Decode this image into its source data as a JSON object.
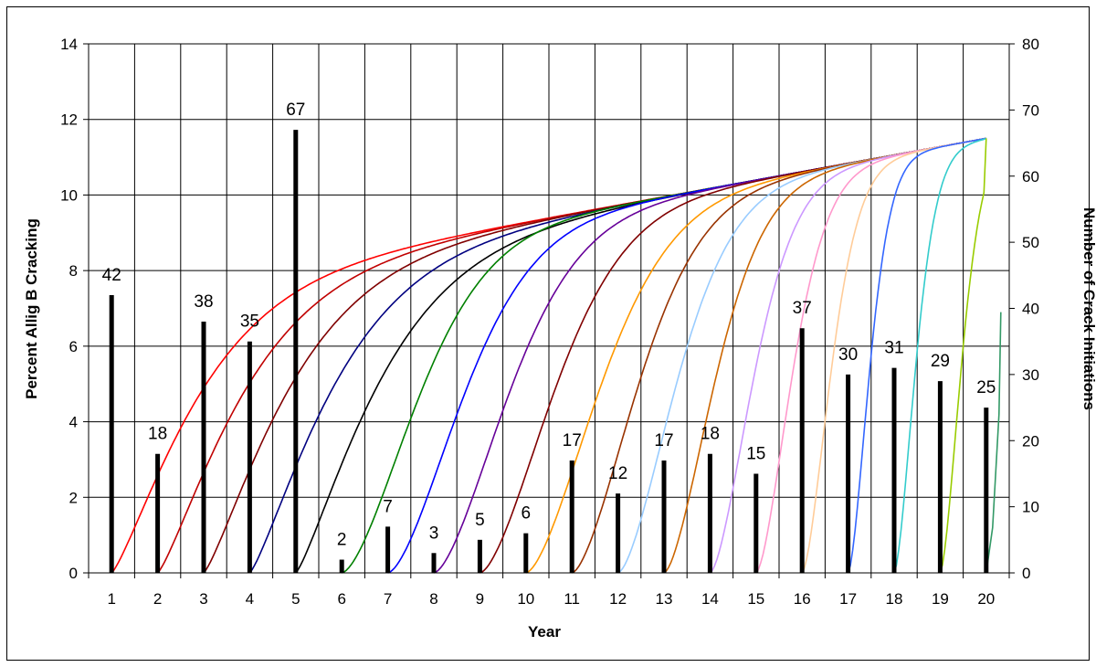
{
  "chart_data": {
    "type": "bar-line-combo",
    "xlabel": "Year",
    "ylabel_left": "Percent Allig B Cracking",
    "ylabel_right": "Number of Crack Initiations",
    "x_categories": [
      "1",
      "2",
      "3",
      "4",
      "5",
      "6",
      "7",
      "8",
      "9",
      "10",
      "11",
      "12",
      "13",
      "14",
      "15",
      "16",
      "17",
      "18",
      "19",
      "20"
    ],
    "y_left_range": [
      0,
      14
    ],
    "y_left_ticks": [
      "0",
      "2",
      "4",
      "6",
      "8",
      "10",
      "12",
      "14"
    ],
    "y_right_range": [
      0,
      80
    ],
    "y_right_ticks": [
      "0",
      "10",
      "20",
      "30",
      "40",
      "50",
      "60",
      "70",
      "80"
    ],
    "grid": true,
    "bars": {
      "axis": "right",
      "color": "#000000",
      "values": [
        42,
        18,
        38,
        35,
        67,
        2,
        7,
        3,
        5,
        6,
        17,
        12,
        17,
        18,
        15,
        37,
        30,
        31,
        29,
        25
      ],
      "labels": [
        "42",
        "18",
        "38",
        "35",
        "67",
        "2",
        "7",
        "3",
        "5",
        "6",
        "17",
        "12",
        "17",
        "18",
        "15",
        "37",
        "30",
        "31",
        "29",
        "25"
      ]
    },
    "curves": {
      "axis": "left",
      "start_years": [
        1,
        2,
        3,
        4,
        5,
        6,
        7,
        8,
        9,
        10,
        11,
        12,
        13,
        14,
        15,
        16,
        17,
        18,
        19,
        20
      ],
      "end_value": 11.5,
      "colors": [
        "#ff0000",
        "#c00000",
        "#800000",
        "#000080",
        "#000000",
        "#008000",
        "#0000ff",
        "#660099",
        "#800000",
        "#ff9900",
        "#993300",
        "#99ccff",
        "#cc6600",
        "#cc99ff",
        "#ff99cc",
        "#ffcc99",
        "#3366ff",
        "#33cccc",
        "#99cc00",
        "#339966"
      ]
    }
  }
}
